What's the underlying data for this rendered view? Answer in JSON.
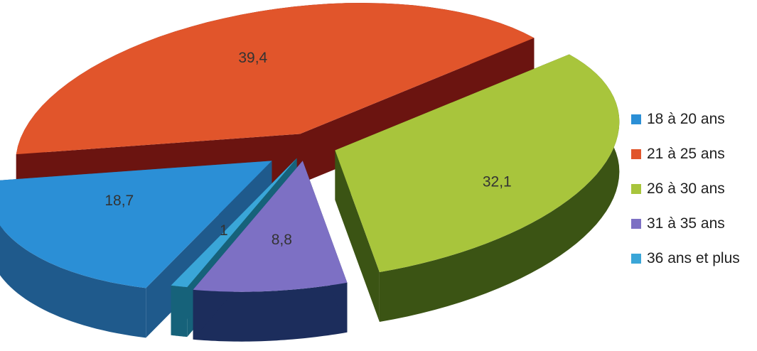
{
  "chart_data": {
    "type": "pie",
    "style": "3d-exploded",
    "title": "",
    "categories": [
      "18 à 20 ans",
      "21 à 25 ans",
      "26 à 30 ans",
      "31 à 35 ans",
      "36 ans et plus"
    ],
    "values": [
      18.7,
      39.4,
      32.1,
      8.8,
      1
    ],
    "value_labels": [
      "18,7",
      "39,4",
      "32,1",
      "8,8",
      "1"
    ],
    "colors": [
      "#2b8fd6",
      "#e1552b",
      "#a8c53c",
      "#7d70c4",
      "#3aa6d8"
    ],
    "side_colors": [
      "#1f5a8c",
      "#6b1410",
      "#3b5414",
      "#1c2d5c",
      "#16627a"
    ],
    "legend_position": "right"
  }
}
